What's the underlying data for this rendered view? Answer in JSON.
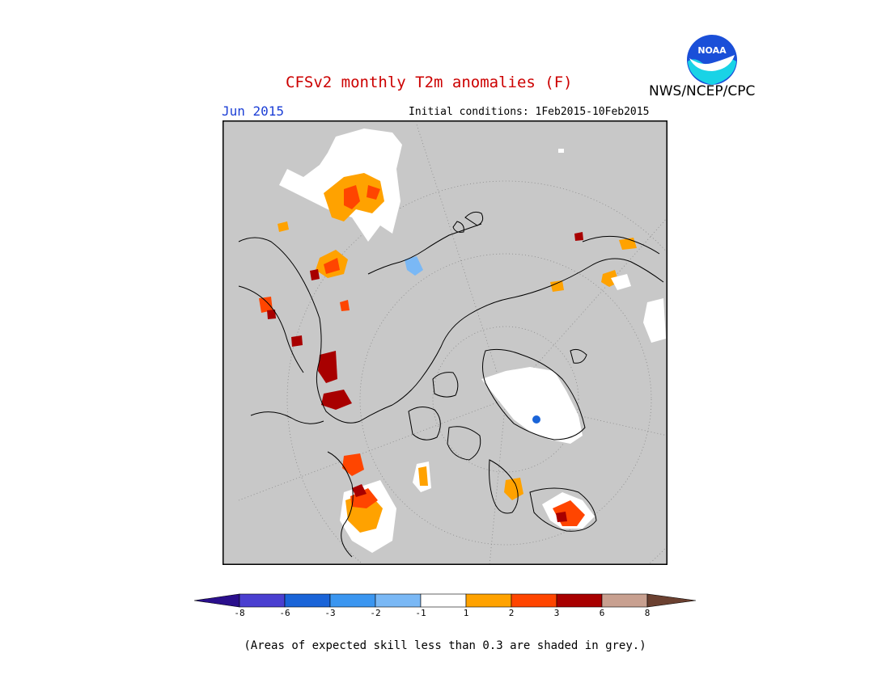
{
  "header": {
    "title": "CFSv2 monthly T2m anomalies (F)",
    "agency": "NWS/NCEP/CPC",
    "logo_text": "NOAA",
    "month": "Jun 2015",
    "initial_conditions": "Initial conditions: 1Feb2015-10Feb2015"
  },
  "colors": {
    "title": "#cc0000",
    "month": "#1c3fd6",
    "skill_mask": "#c8c8c8",
    "land_outline": "#000000",
    "logo_blue": "#1a4fd8",
    "logo_cyan": "#19d3e6"
  },
  "legend": {
    "bins": [
      {
        "color": "#2a0f8c"
      },
      {
        "color": "#4a3fd0"
      },
      {
        "color": "#1a64d8"
      },
      {
        "color": "#3b96f0"
      },
      {
        "color": "#7ab8f5"
      },
      {
        "color": "#ffffff"
      },
      {
        "color": "#ffa200"
      },
      {
        "color": "#ff4500"
      },
      {
        "color": "#a80000"
      },
      {
        "color": "#c8a090"
      },
      {
        "color": "#6b4030"
      }
    ],
    "ticks": [
      "-8",
      "-6",
      "-3",
      "-2",
      "-1",
      "1",
      "2",
      "3",
      "6",
      "8"
    ]
  },
  "footnote": "(Areas of expected skill less than 0.3 are shaded in grey.)"
}
